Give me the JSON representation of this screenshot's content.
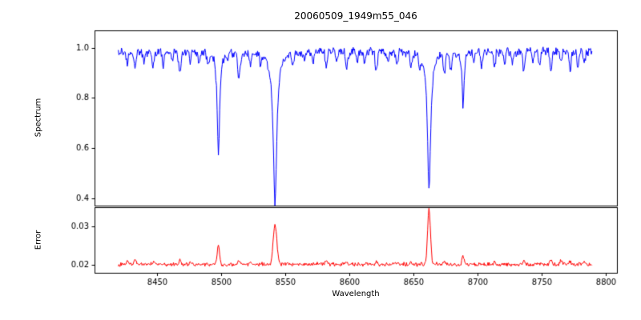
{
  "chart_data": [
    {
      "type": "line",
      "name": "spectrum",
      "title": "20060509_1949m55_046",
      "ylabel": "Spectrum",
      "xlabel": "",
      "color": "#0000ff",
      "xlim": [
        8401.5,
        8808.5
      ],
      "ylim": [
        0.37,
        1.07
      ],
      "x_range": [
        8420,
        8789
      ],
      "x_step": 0.5,
      "yticks": [
        0.4,
        0.6,
        0.8,
        1.0
      ],
      "ytick_labels": [
        "0.4",
        "0.6",
        "0.8",
        "1.0"
      ],
      "base": 0.985,
      "clip_max": 1.035,
      "noise_amplitude": 0.011,
      "noise_seed": 20060509,
      "features": [
        {
          "center": 8498.0,
          "amplitude": -0.41,
          "width": 1.1,
          "profile": "lorentzian"
        },
        {
          "center": 8542.1,
          "amplitude": -0.6,
          "width": 1.7,
          "profile": "lorentzian"
        },
        {
          "center": 8662.1,
          "amplitude": -0.555,
          "width": 1.5,
          "profile": "lorentzian"
        },
        {
          "center": 8688.6,
          "amplitude": -0.21,
          "width": 0.9,
          "profile": "lorentzian"
        },
        {
          "center": 8427,
          "amplitude": -0.05,
          "width": 0.8,
          "profile": "gaussian"
        },
        {
          "center": 8433,
          "amplitude": -0.06,
          "width": 0.8,
          "profile": "gaussian"
        },
        {
          "center": 8440,
          "amplitude": -0.04,
          "width": 0.7,
          "profile": "gaussian"
        },
        {
          "center": 8447,
          "amplitude": -0.05,
          "width": 0.8,
          "profile": "gaussian"
        },
        {
          "center": 8455,
          "amplitude": -0.05,
          "width": 0.7,
          "profile": "gaussian"
        },
        {
          "center": 8462,
          "amplitude": -0.04,
          "width": 0.7,
          "profile": "gaussian"
        },
        {
          "center": 8468,
          "amplitude": -0.09,
          "width": 0.9,
          "profile": "gaussian"
        },
        {
          "center": 8476,
          "amplitude": -0.05,
          "width": 0.7,
          "profile": "gaussian"
        },
        {
          "center": 8483,
          "amplitude": -0.04,
          "width": 0.7,
          "profile": "gaussian"
        },
        {
          "center": 8490,
          "amplitude": -0.04,
          "width": 0.7,
          "profile": "gaussian"
        },
        {
          "center": 8505,
          "amplitude": -0.04,
          "width": 0.7,
          "profile": "gaussian"
        },
        {
          "center": 8514,
          "amplitude": -0.11,
          "width": 0.9,
          "profile": "gaussian"
        },
        {
          "center": 8523,
          "amplitude": -0.05,
          "width": 0.7,
          "profile": "gaussian"
        },
        {
          "center": 8531,
          "amplitude": -0.04,
          "width": 0.7,
          "profile": "gaussian"
        },
        {
          "center": 8556,
          "amplitude": -0.05,
          "width": 0.7,
          "profile": "gaussian"
        },
        {
          "center": 8565,
          "amplitude": -0.04,
          "width": 0.7,
          "profile": "gaussian"
        },
        {
          "center": 8572,
          "amplitude": -0.04,
          "width": 0.7,
          "profile": "gaussian"
        },
        {
          "center": 8582,
          "amplitude": -0.06,
          "width": 0.8,
          "profile": "gaussian"
        },
        {
          "center": 8590,
          "amplitude": -0.04,
          "width": 0.7,
          "profile": "gaussian"
        },
        {
          "center": 8598,
          "amplitude": -0.07,
          "width": 0.8,
          "profile": "gaussian"
        },
        {
          "center": 8606,
          "amplitude": -0.04,
          "width": 0.7,
          "profile": "gaussian"
        },
        {
          "center": 8612,
          "amplitude": -0.05,
          "width": 0.7,
          "profile": "gaussian"
        },
        {
          "center": 8621,
          "amplitude": -0.07,
          "width": 0.8,
          "profile": "gaussian"
        },
        {
          "center": 8630,
          "amplitude": -0.04,
          "width": 0.7,
          "profile": "gaussian"
        },
        {
          "center": 8637,
          "amplitude": -0.05,
          "width": 0.7,
          "profile": "gaussian"
        },
        {
          "center": 8648,
          "amplitude": -0.06,
          "width": 0.8,
          "profile": "gaussian"
        },
        {
          "center": 8655,
          "amplitude": -0.04,
          "width": 0.7,
          "profile": "gaussian"
        },
        {
          "center": 8674,
          "amplitude": -0.08,
          "width": 0.8,
          "profile": "gaussian"
        },
        {
          "center": 8679,
          "amplitude": -0.07,
          "width": 0.8,
          "profile": "gaussian"
        },
        {
          "center": 8697,
          "amplitude": -0.04,
          "width": 0.7,
          "profile": "gaussian"
        },
        {
          "center": 8703,
          "amplitude": -0.05,
          "width": 0.7,
          "profile": "gaussian"
        },
        {
          "center": 8713,
          "amplitude": -0.06,
          "width": 0.8,
          "profile": "gaussian"
        },
        {
          "center": 8721,
          "amplitude": -0.04,
          "width": 0.7,
          "profile": "gaussian"
        },
        {
          "center": 8727,
          "amplitude": -0.05,
          "width": 0.7,
          "profile": "gaussian"
        },
        {
          "center": 8736,
          "amplitude": -0.07,
          "width": 0.8,
          "profile": "gaussian"
        },
        {
          "center": 8743,
          "amplitude": -0.04,
          "width": 0.7,
          "profile": "gaussian"
        },
        {
          "center": 8748,
          "amplitude": -0.05,
          "width": 0.7,
          "profile": "gaussian"
        },
        {
          "center": 8757,
          "amplitude": -0.08,
          "width": 0.8,
          "profile": "gaussian"
        },
        {
          "center": 8765,
          "amplitude": -0.04,
          "width": 0.7,
          "profile": "gaussian"
        },
        {
          "center": 8772,
          "amplitude": -0.07,
          "width": 0.8,
          "profile": "gaussian"
        },
        {
          "center": 8778,
          "amplitude": -0.05,
          "width": 0.7,
          "profile": "gaussian"
        },
        {
          "center": 8783,
          "amplitude": -0.05,
          "width": 0.7,
          "profile": "gaussian"
        }
      ]
    },
    {
      "type": "line",
      "name": "error",
      "ylabel": "Error",
      "xlabel": "Wavelength",
      "color": "#ff0000",
      "xlim": [
        8401.5,
        8808.5
      ],
      "ylim": [
        0.018,
        0.035
      ],
      "x_range": [
        8420,
        8789
      ],
      "x_step": 0.5,
      "yticks": [
        0.02,
        0.03
      ],
      "ytick_labels": [
        "0.02",
        "0.03"
      ],
      "xticks": [
        8450,
        8500,
        8550,
        8600,
        8650,
        8700,
        8750,
        8800
      ],
      "xtick_labels": [
        "8450",
        "8500",
        "8550",
        "8600",
        "8650",
        "8700",
        "8750",
        "8800"
      ],
      "base": 0.0202,
      "noise_amplitude": 0.0003,
      "noise_seed": 1949,
      "features": [
        {
          "center": 8498.0,
          "amplitude": 0.005,
          "width": 0.9,
          "profile": "gaussian"
        },
        {
          "center": 8542.1,
          "amplitude": 0.0101,
          "width": 1.4,
          "profile": "gaussian"
        },
        {
          "center": 8662.1,
          "amplitude": 0.0142,
          "width": 1.1,
          "profile": "gaussian"
        },
        {
          "center": 8688.6,
          "amplitude": 0.0022,
          "width": 0.8,
          "profile": "gaussian"
        },
        {
          "center": 8427,
          "amplitude": 0.0008,
          "width": 0.8,
          "profile": "gaussian"
        },
        {
          "center": 8433,
          "amplitude": 0.0012,
          "width": 0.8,
          "profile": "gaussian"
        },
        {
          "center": 8447,
          "amplitude": 0.0007,
          "width": 0.8,
          "profile": "gaussian"
        },
        {
          "center": 8468,
          "amplitude": 0.001,
          "width": 0.8,
          "profile": "gaussian"
        },
        {
          "center": 8476,
          "amplitude": 0.0007,
          "width": 0.8,
          "profile": "gaussian"
        },
        {
          "center": 8514,
          "amplitude": 0.0011,
          "width": 0.8,
          "profile": "gaussian"
        },
        {
          "center": 8523,
          "amplitude": 0.0007,
          "width": 0.8,
          "profile": "gaussian"
        },
        {
          "center": 8582,
          "amplitude": 0.0007,
          "width": 0.8,
          "profile": "gaussian"
        },
        {
          "center": 8598,
          "amplitude": 0.0008,
          "width": 0.8,
          "profile": "gaussian"
        },
        {
          "center": 8621,
          "amplitude": 0.0007,
          "width": 0.8,
          "profile": "gaussian"
        },
        {
          "center": 8648,
          "amplitude": 0.0006,
          "width": 0.8,
          "profile": "gaussian"
        },
        {
          "center": 8674,
          "amplitude": 0.0008,
          "width": 0.8,
          "profile": "gaussian"
        },
        {
          "center": 8713,
          "amplitude": 0.0007,
          "width": 0.8,
          "profile": "gaussian"
        },
        {
          "center": 8736,
          "amplitude": 0.0008,
          "width": 0.8,
          "profile": "gaussian"
        },
        {
          "center": 8757,
          "amplitude": 0.0009,
          "width": 0.8,
          "profile": "gaussian"
        },
        {
          "center": 8765,
          "amplitude": 0.0012,
          "width": 0.8,
          "profile": "gaussian"
        },
        {
          "center": 8772,
          "amplitude": 0.0008,
          "width": 0.8,
          "profile": "gaussian"
        },
        {
          "center": 8783,
          "amplitude": 0.0007,
          "width": 0.8,
          "profile": "gaussian"
        }
      ]
    }
  ]
}
